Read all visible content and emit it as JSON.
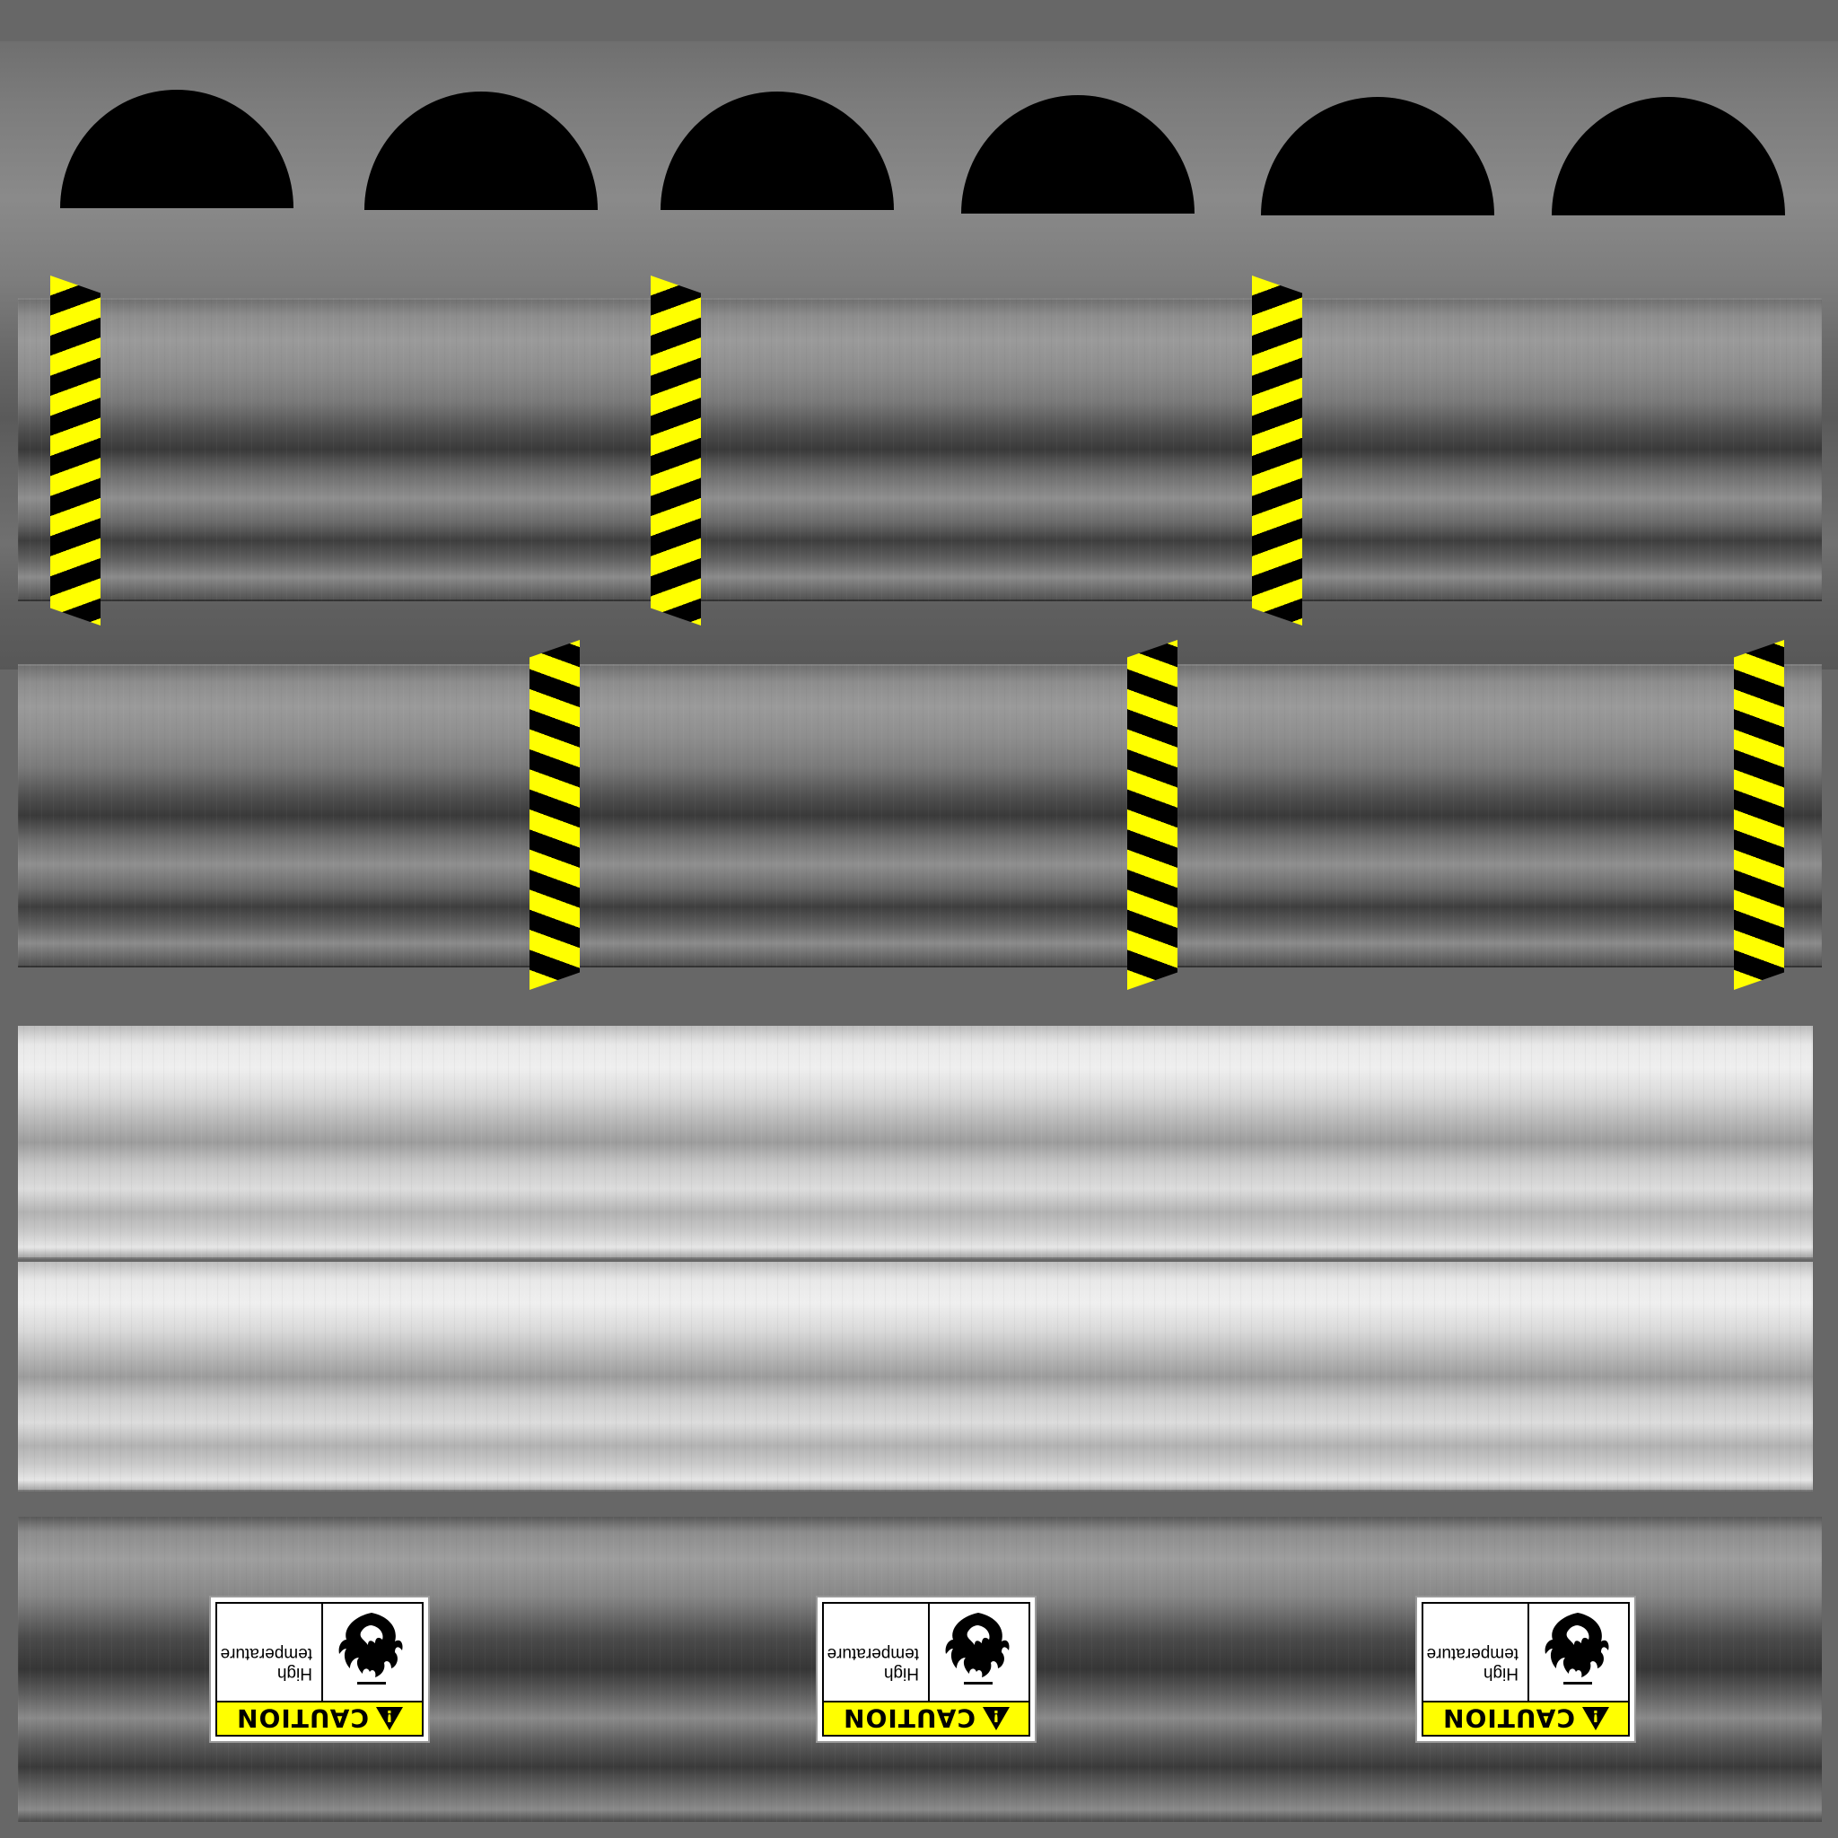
{
  "texture": {
    "background": "#676767",
    "hazard_colors": [
      "#ffff00",
      "#000000"
    ],
    "domes": 6,
    "hazard_strips_row1": 3,
    "hazard_strips_row2": 3
  },
  "signs": [
    {
      "heading": "CAUTION",
      "line1": "High",
      "line2": "temperature",
      "icon": "flame-icon"
    },
    {
      "heading": "CAUTION",
      "line1": "High",
      "line2": "temperature",
      "icon": "flame-icon"
    },
    {
      "heading": "CAUTION",
      "line1": "High",
      "line2": "temperature",
      "icon": "flame-icon"
    }
  ]
}
